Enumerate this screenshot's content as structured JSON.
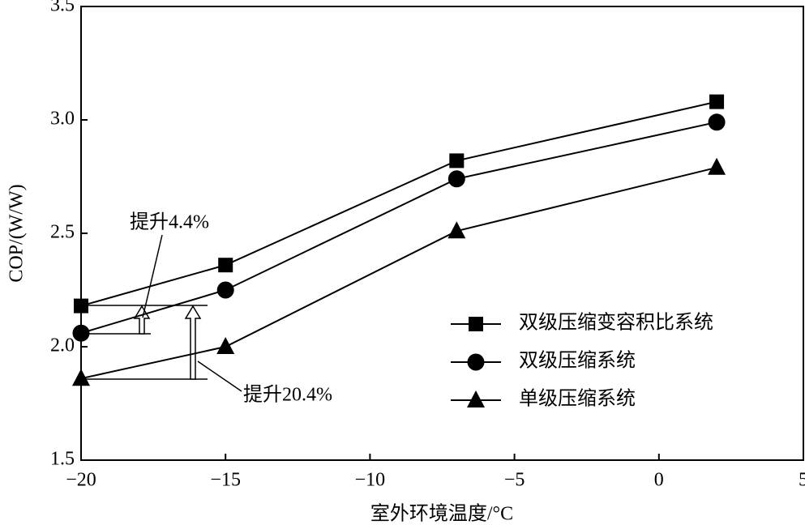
{
  "chart_data": {
    "type": "line",
    "xlabel": "室外环境温度/°C",
    "ylabel": "COP/(W/W)",
    "x": [
      -20,
      -15,
      -7,
      2
    ],
    "series": [
      {
        "name": "双级压缩变容积比系统",
        "color": "#000000",
        "marker": "square",
        "values": [
          2.18,
          2.36,
          2.82,
          3.08
        ]
      },
      {
        "name": "双级压缩系统",
        "color": "#000000",
        "marker": "circle",
        "values": [
          2.06,
          2.25,
          2.74,
          2.99
        ]
      },
      {
        "name": "单级压缩系统",
        "color": "#000000",
        "marker": "triangle",
        "values": [
          1.86,
          2.0,
          2.51,
          2.79
        ]
      }
    ],
    "xlim": [
      -20,
      5
    ],
    "xticks": [
      {
        "value": -20,
        "label": "−20"
      },
      {
        "value": -15,
        "label": "−15"
      },
      {
        "value": -10,
        "label": "−10"
      },
      {
        "value": -5,
        "label": "−5"
      },
      0,
      5
    ],
    "ylim": [
      1.5,
      3.5
    ],
    "yticks": [
      1.5,
      {
        "value": 2,
        "label": "2.0"
      },
      2.5,
      {
        "value": 3,
        "label": "3.0"
      },
      3.5
    ],
    "legend": "lower right",
    "annotations": [
      "提升4.4%",
      "提升20.4%"
    ]
  }
}
